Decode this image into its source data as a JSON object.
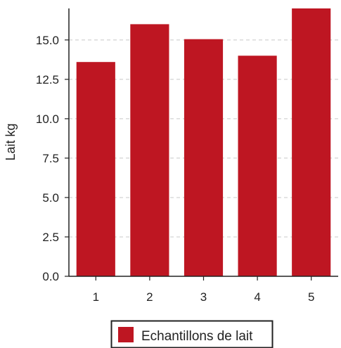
{
  "chart_data": {
    "type": "bar",
    "categories": [
      "1",
      "2",
      "3",
      "4",
      "5"
    ],
    "series": [
      {
        "name": "Echantillons de lait",
        "values": [
          13.6,
          16.0,
          15.05,
          14.0,
          17.0
        ],
        "color": "#be1622"
      }
    ],
    "ylabel": "Lait kg",
    "xlabel": "",
    "title": "",
    "ylim": [
      0,
      17
    ],
    "yticks": [
      "0.0",
      "2.5",
      "5.0",
      "7.5",
      "10.0",
      "12.5",
      "15.0"
    ],
    "grid": "horizontal dashed",
    "legend_position": "bottom-center"
  }
}
